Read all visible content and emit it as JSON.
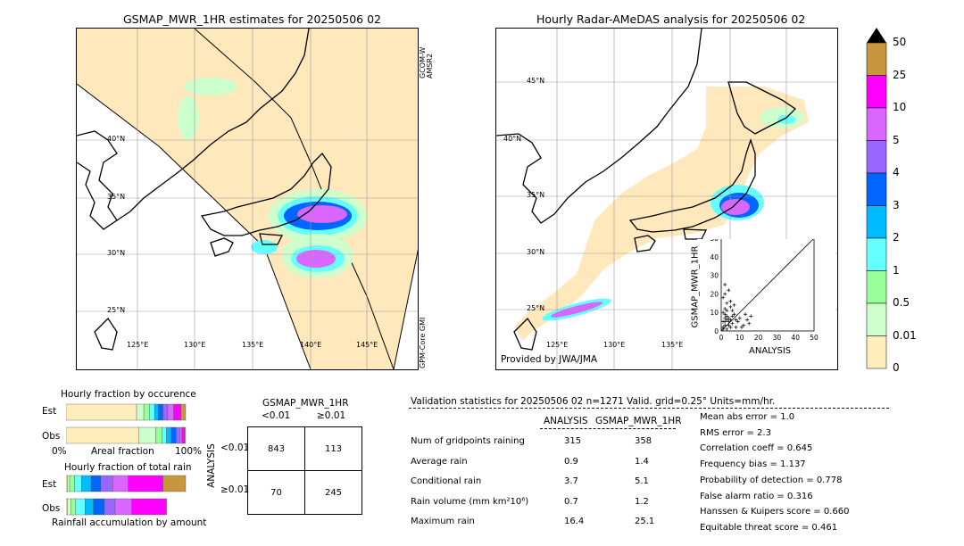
{
  "left_map": {
    "title": "GSMAP_MWR_1HR estimates for 20250506 02",
    "lat_labels": [
      "40°N",
      "35°N",
      "30°N",
      "25°N"
    ],
    "lon_labels": [
      "125°E",
      "130°E",
      "135°E",
      "140°E",
      "145°E"
    ],
    "swath_label_top": "GCOM-W AMSR2",
    "swath_label_bottom": "GPM-Core GMI"
  },
  "right_map": {
    "title": "Hourly Radar-AMeDAS analysis for 20250506 02",
    "lat_labels": [
      "45°N",
      "40°N",
      "35°N",
      "30°N",
      "25°N"
    ],
    "lon_labels": [
      "125°E",
      "130°E",
      "135°E"
    ],
    "credit": "Provided by JWA/JMA"
  },
  "colorbar": {
    "ticks": [
      "50",
      "25",
      "10",
      "5",
      "4",
      "3",
      "2",
      "1",
      "0.5",
      "0.01",
      "0"
    ],
    "colors": [
      "#c8963c",
      "#ff00ff",
      "#d966ff",
      "#9966ff",
      "#0066ff",
      "#00bbff",
      "#66ffff",
      "#99ff99",
      "#ccffcc",
      "#ffeebb"
    ]
  },
  "chart_data": [
    {
      "type": "scatter",
      "xlabel": "ANALYSIS",
      "ylabel": "GSMAP_MWR_1HR",
      "xlim": [
        0,
        50
      ],
      "ylim": [
        0,
        50
      ],
      "x_ticks": [
        "0",
        "10",
        "20",
        "30",
        "40",
        "50"
      ],
      "y_ticks": [
        "0",
        "10",
        "20",
        "30",
        "40",
        "50"
      ],
      "points": [
        [
          1,
          2
        ],
        [
          2,
          5
        ],
        [
          3,
          8
        ],
        [
          1,
          10
        ],
        [
          4,
          3
        ],
        [
          5,
          6
        ],
        [
          2,
          12
        ],
        [
          6,
          4
        ],
        [
          3,
          15
        ],
        [
          7,
          9
        ],
        [
          8,
          2
        ],
        [
          1,
          18
        ],
        [
          4,
          22
        ],
        [
          2,
          25
        ],
        [
          5,
          13
        ],
        [
          9,
          5
        ],
        [
          10,
          7
        ],
        [
          12,
          3
        ],
        [
          14,
          6
        ],
        [
          15,
          4
        ],
        [
          16,
          8
        ],
        [
          3,
          6
        ],
        [
          2,
          3
        ],
        [
          1,
          1
        ],
        [
          6,
          11
        ],
        [
          4,
          7
        ],
        [
          7,
          14
        ],
        [
          2,
          9
        ],
        [
          3,
          1
        ],
        [
          5,
          2
        ],
        [
          8,
          6
        ],
        [
          11,
          2
        ],
        [
          13,
          9
        ],
        [
          1,
          5
        ],
        [
          2,
          7
        ],
        [
          4,
          5
        ],
        [
          6,
          8
        ],
        [
          3,
          11
        ],
        [
          5,
          16
        ],
        [
          2,
          20
        ]
      ]
    },
    {
      "type": "bar",
      "title": "Hourly fraction by occurence",
      "categories": [
        "Est",
        "Obs"
      ],
      "xlabel": "Areal fraction",
      "x_ticks": [
        "0%",
        "100%"
      ],
      "series": [
        {
          "values": [
            0.59,
            0.61
          ]
        },
        {
          "values": [
            0.06,
            0.14
          ]
        },
        {
          "values": [
            0.05,
            0.05
          ]
        },
        {
          "values": [
            0.04,
            0.04
          ]
        },
        {
          "values": [
            0.03,
            0.04
          ]
        },
        {
          "values": [
            0.04,
            0.04
          ]
        },
        {
          "values": [
            0.04,
            0.03
          ]
        },
        {
          "values": [
            0.05,
            0.02
          ]
        },
        {
          "values": [
            0.06,
            0.02
          ]
        },
        {
          "values": [
            0.04,
            0.01
          ]
        }
      ]
    },
    {
      "type": "bar",
      "title": "Hourly fraction of total rain",
      "categories": [
        "Est",
        "Obs"
      ],
      "xlabel": "Rainfall accumulation by amount",
      "series": [
        {
          "values": [
            0.01,
            0.01
          ]
        },
        {
          "values": [
            0.02,
            0.03
          ]
        },
        {
          "values": [
            0.04,
            0.04
          ]
        },
        {
          "values": [
            0.06,
            0.08
          ]
        },
        {
          "values": [
            0.08,
            0.07
          ]
        },
        {
          "values": [
            0.08,
            0.09
          ]
        },
        {
          "values": [
            0.1,
            0.09
          ]
        },
        {
          "values": [
            0.13,
            0.14
          ]
        },
        {
          "values": [
            0.29,
            0.29
          ]
        },
        {
          "values": [
            0.19,
            0.0
          ]
        }
      ]
    }
  ],
  "contingency": {
    "title": "GSMAP_MWR_1HR",
    "col_labels": [
      "<0.01",
      "≥0.01"
    ],
    "row_axis": "ANALYSIS",
    "row_labels": [
      "<0.01",
      "≥0.01"
    ],
    "cells": [
      [
        "843",
        "113"
      ],
      [
        "70",
        "245"
      ]
    ]
  },
  "stats": {
    "header": "Validation statistics for 20250506 02  n=1271 Valid. grid=0.25° Units=mm/hr.",
    "col_analysis": "ANALYSIS",
    "col_gsmap": "GSMAP_MWR_1HR",
    "rows": [
      {
        "label": "Num of gridpoints raining",
        "a": "315",
        "g": "358"
      },
      {
        "label": "Average rain",
        "a": "0.9",
        "g": "1.4"
      },
      {
        "label": "Conditional rain",
        "a": "3.7",
        "g": "5.1"
      },
      {
        "label": "Rain volume (mm km²10⁶)",
        "a": "0.7",
        "g": "1.2"
      },
      {
        "label": "Maximum rain",
        "a": "16.4",
        "g": "25.1"
      }
    ],
    "scores": [
      "Mean abs error =    1.0",
      "RMS error =    2.3",
      "Correlation coeff =  0.645",
      "Frequency bias =  1.137",
      "Probability of detection =  0.778",
      "False alarm ratio =  0.316",
      "Hanssen & Kuipers score =  0.660",
      "Equitable threat score =  0.461"
    ]
  }
}
